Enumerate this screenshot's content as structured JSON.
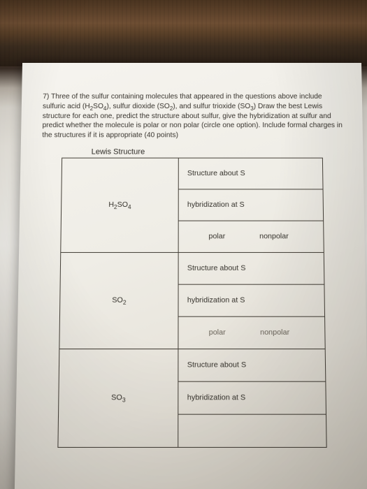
{
  "question": {
    "number": "7)",
    "text_a": "Three of the sulfur containing molecules that appeared in the questions above include sulfuric acid (H",
    "f1": "2",
    "text_b": "SO",
    "f2": "4",
    "text_c": "), sulfur dioxide (SO",
    "f3": "2",
    "text_d": "), and sulfur trioxide (SO",
    "f4": "3",
    "text_e": ") Draw the best Lewis structure for each one, predict the structure about sulfur, give the hybridization at sulfur and predict whether the molecule is polar or non polar (circle one option). Include formal charges in the structures if it is appropriate (40 points)"
  },
  "headers": {
    "lewis": "Lewis Structure",
    "structure": "Structure about S",
    "hybrid": "hybridization at S",
    "polar": "polar",
    "nonpolar": "nonpolar"
  },
  "rows": [
    {
      "formula_a": "H",
      "sub1": "2",
      "formula_b": "SO",
      "sub2": "4"
    },
    {
      "formula_a": "",
      "sub1": "",
      "formula_b": "SO",
      "sub2": "2"
    },
    {
      "formula_a": "",
      "sub1": "",
      "formula_b": "SO",
      "sub2": "3"
    }
  ],
  "colors": {
    "ink": "#2a2824",
    "border": "#47423a",
    "paper_light": "#f6f4ef",
    "paper_dark": "#d2ccc0",
    "wood_dark": "#3d2e20",
    "wood_light": "#6e4e33"
  }
}
